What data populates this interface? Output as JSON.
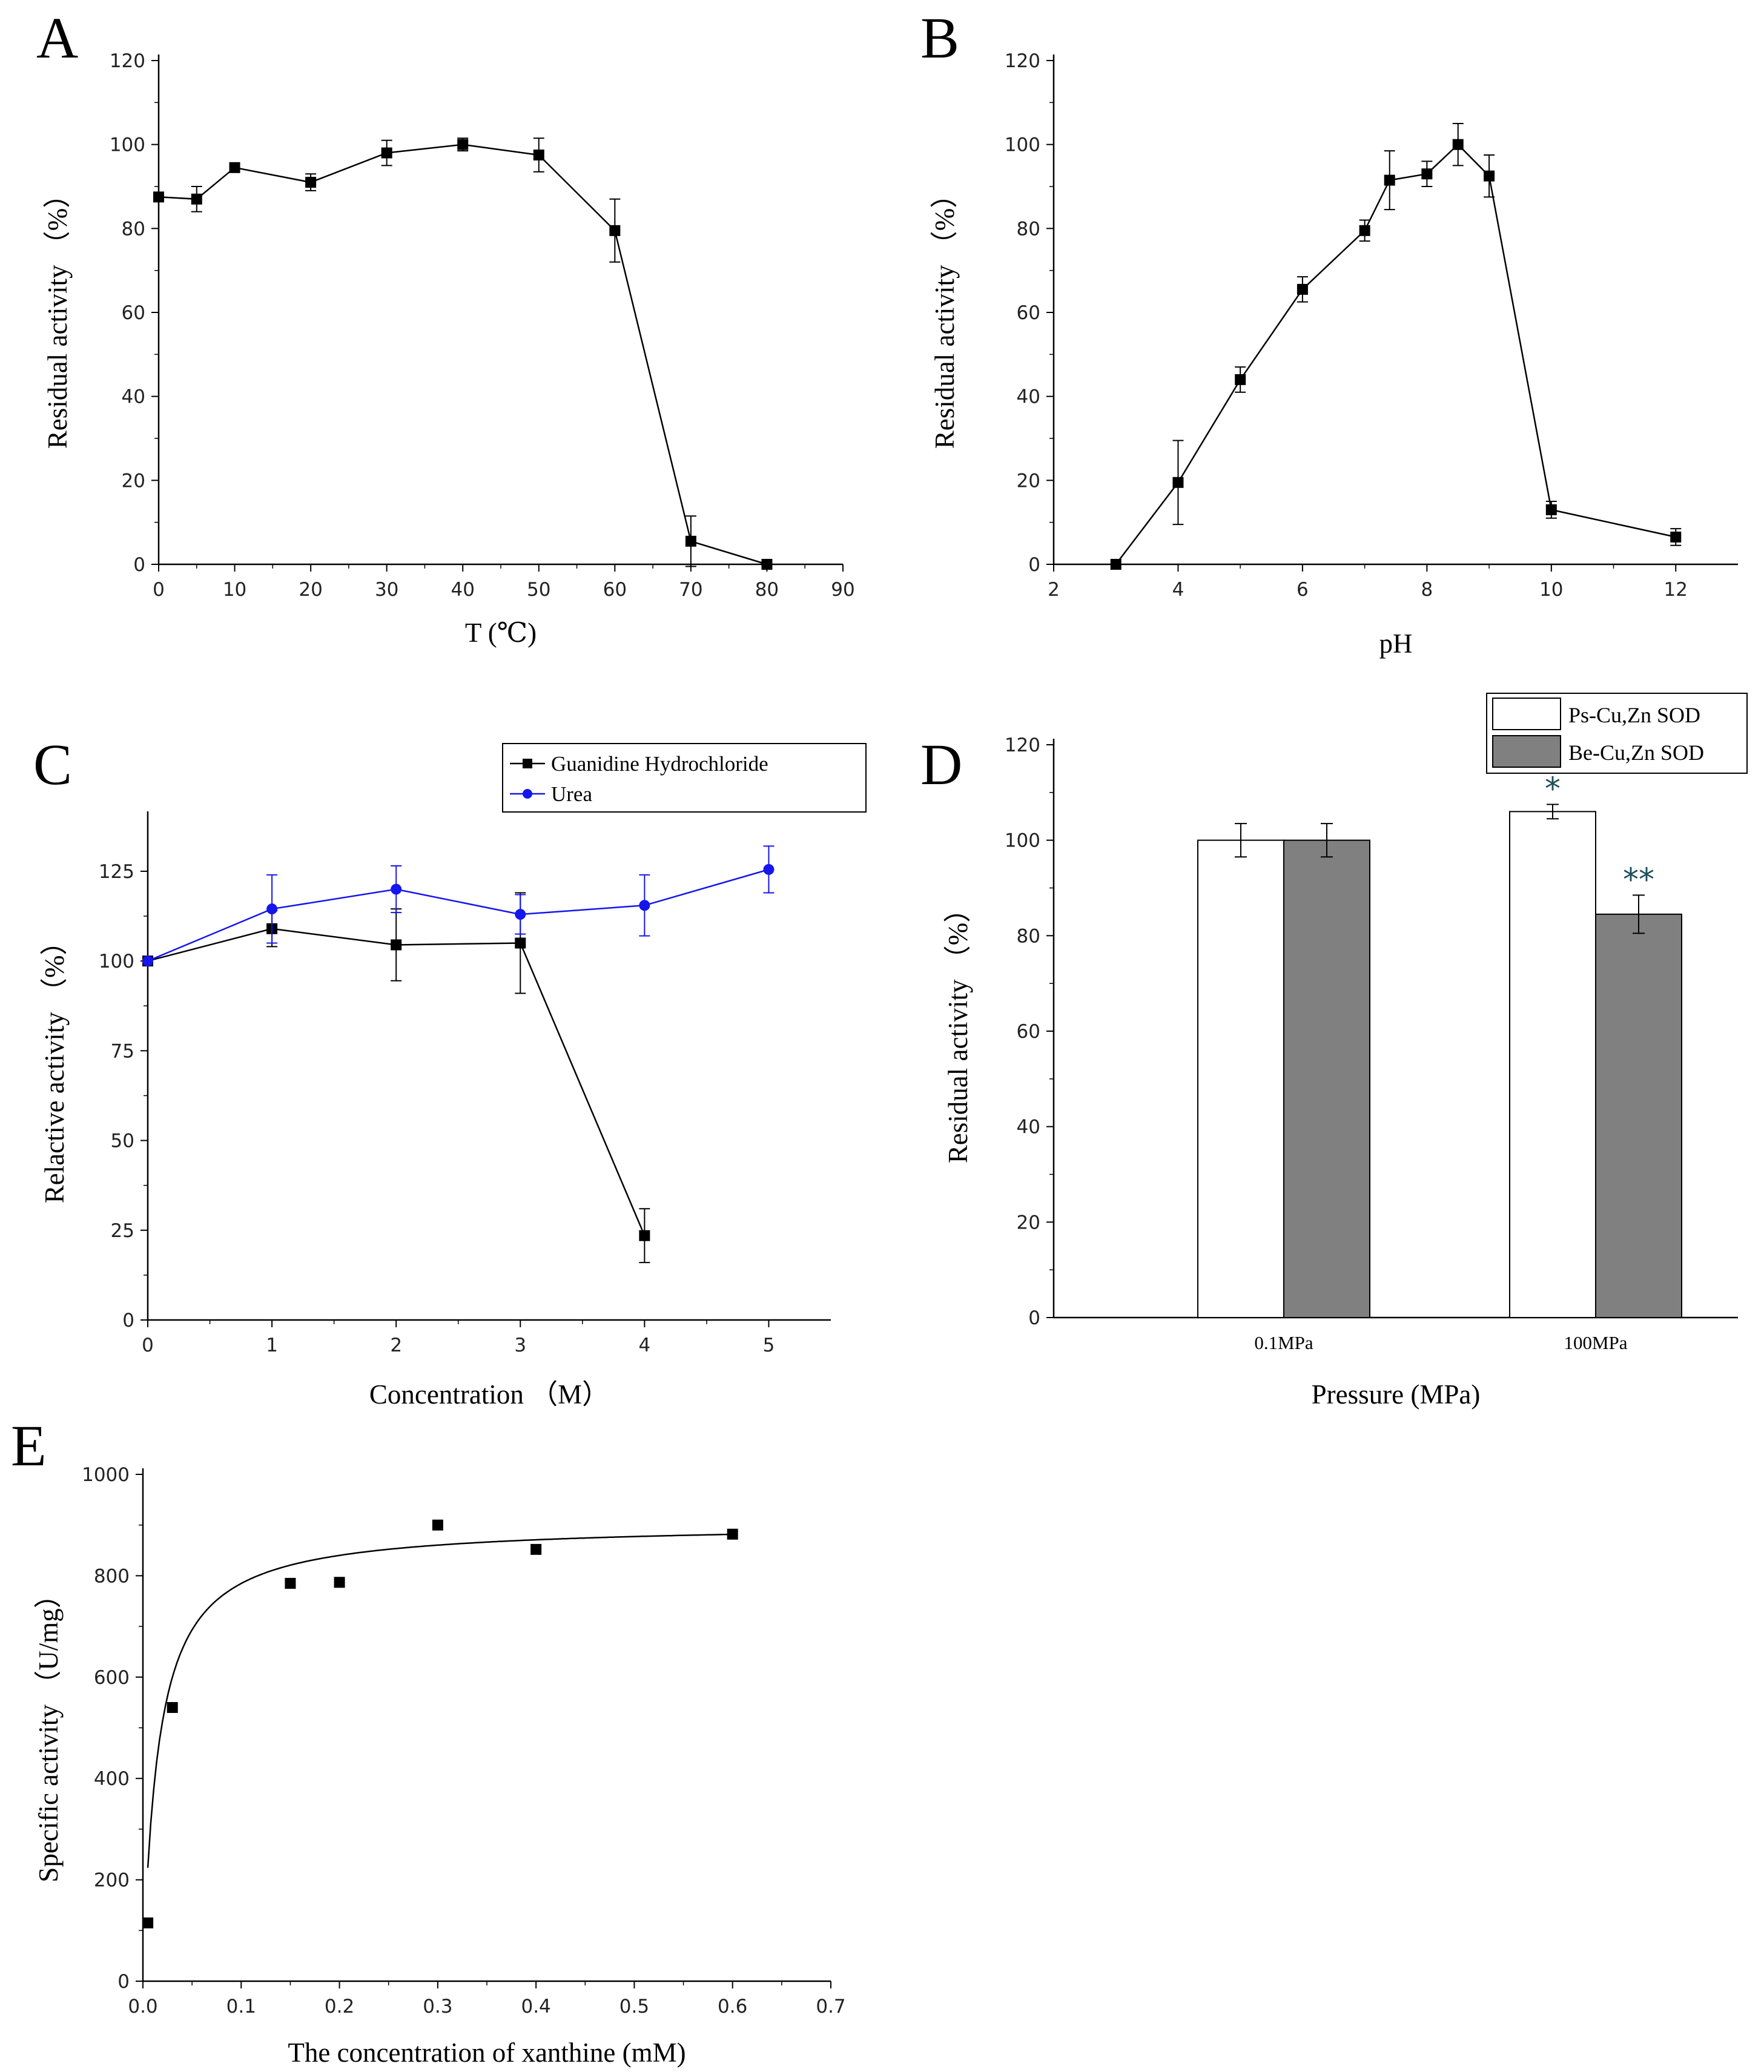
{
  "chart_data": [
    {
      "panel": "A",
      "type": "line",
      "xlabel": "T (℃)",
      "ylabel": "Residual activity （%）",
      "xlim": [
        0,
        90
      ],
      "ylim": [
        0,
        120
      ],
      "xticks": [
        0,
        10,
        20,
        30,
        40,
        50,
        60,
        70,
        80,
        90
      ],
      "yticks": [
        0,
        20,
        40,
        60,
        80,
        100,
        120
      ],
      "series": [
        {
          "name": "Residual activity",
          "color": "#000000",
          "marker": "square",
          "x": [
            0,
            5,
            10,
            20,
            30,
            40,
            50,
            60,
            70,
            80
          ],
          "y": [
            87.5,
            87,
            94.5,
            91,
            98,
            100,
            97.5,
            79.5,
            5.5,
            0
          ],
          "err": [
            0,
            3,
            1,
            2,
            3,
            1.5,
            4,
            7.5,
            6,
            0
          ]
        }
      ]
    },
    {
      "panel": "B",
      "type": "line",
      "xlabel": "pH",
      "ylabel": "Residual activity （%）",
      "xlim": [
        2,
        13
      ],
      "ylim": [
        0,
        120
      ],
      "xticks": [
        2,
        4,
        6,
        8,
        10,
        12
      ],
      "yticks": [
        0,
        20,
        40,
        60,
        80,
        100,
        120
      ],
      "series": [
        {
          "name": "Residual activity",
          "color": "#000000",
          "marker": "square",
          "x": [
            3,
            4,
            5,
            6,
            7,
            7.4,
            8,
            8.5,
            9,
            10,
            12
          ],
          "y": [
            0,
            19.5,
            44,
            65.5,
            79.5,
            91.5,
            93,
            100,
            92.5,
            13,
            6.5
          ],
          "err": [
            0,
            10,
            3,
            3,
            2.5,
            7,
            3,
            5,
            5,
            2,
            2
          ]
        }
      ]
    },
    {
      "panel": "C",
      "type": "line",
      "xlabel": "Concentration （M）",
      "ylabel": "Relactive activity （%）",
      "xlim": [
        0,
        5.5
      ],
      "ylim": [
        0,
        140
      ],
      "xticks": [
        0,
        1,
        2,
        3,
        4,
        5
      ],
      "yticks": [
        0,
        25,
        50,
        75,
        100,
        125
      ],
      "legend": [
        "Guanidine Hydrochloride",
        "Urea"
      ],
      "series": [
        {
          "name": "Guanidine Hydrochloride",
          "color": "#000000",
          "marker": "square",
          "x": [
            0,
            1,
            2,
            3,
            4
          ],
          "y": [
            100,
            109,
            104.5,
            105,
            23.5
          ],
          "err": [
            0,
            5,
            10,
            14,
            7.5
          ]
        },
        {
          "name": "Urea",
          "color": "#1515ee",
          "marker": "circle",
          "x": [
            0,
            1,
            2,
            3,
            4,
            5
          ],
          "y": [
            100,
            114.5,
            120,
            113,
            115.5,
            125.5
          ],
          "err": [
            0,
            9.5,
            6.5,
            5.5,
            8.5,
            6.5
          ]
        }
      ]
    },
    {
      "panel": "D",
      "type": "bar",
      "xlabel": "Pressure (MPa)",
      "ylabel": "Residual activity （%）",
      "ylim": [
        0,
        120
      ],
      "yticks": [
        0,
        20,
        40,
        60,
        80,
        100,
        120
      ],
      "categories": [
        "0.1MPa",
        "100MPa"
      ],
      "legend": [
        "Ps-Cu,Zn SOD",
        "Be-Cu,Zn SOD"
      ],
      "series": [
        {
          "name": "Ps-Cu,Zn SOD",
          "color": "#ffffff",
          "values": [
            100,
            106
          ],
          "err": [
            3.5,
            1.5
          ],
          "annotations": [
            "",
            "*"
          ]
        },
        {
          "name": "Be-Cu,Zn SOD",
          "color": "#808080",
          "values": [
            100,
            84.5
          ],
          "err": [
            3.5,
            4
          ],
          "annotations": [
            "",
            "**"
          ]
        }
      ]
    },
    {
      "panel": "E",
      "type": "scatter",
      "xlabel": "The concentration of xanthine (mM)",
      "ylabel": "Specific activity （U/mg）",
      "xlim": [
        0,
        0.7
      ],
      "ylim": [
        0,
        1000
      ],
      "xticks": [
        0.0,
        0.1,
        0.2,
        0.3,
        0.4,
        0.5,
        0.6,
        0.7
      ],
      "yticks": [
        0,
        200,
        400,
        600,
        800,
        1000
      ],
      "series": [
        {
          "name": "Specific activity",
          "color": "#000000",
          "marker": "square",
          "x": [
            0.005,
            0.03,
            0.15,
            0.2,
            0.3,
            0.4,
            0.6
          ],
          "y": [
            115,
            540,
            785,
            787,
            900,
            852,
            882
          ]
        }
      ],
      "fit": {
        "model": "Michaelis-Menten",
        "vmax": 904,
        "km": 0.0152
      }
    }
  ]
}
